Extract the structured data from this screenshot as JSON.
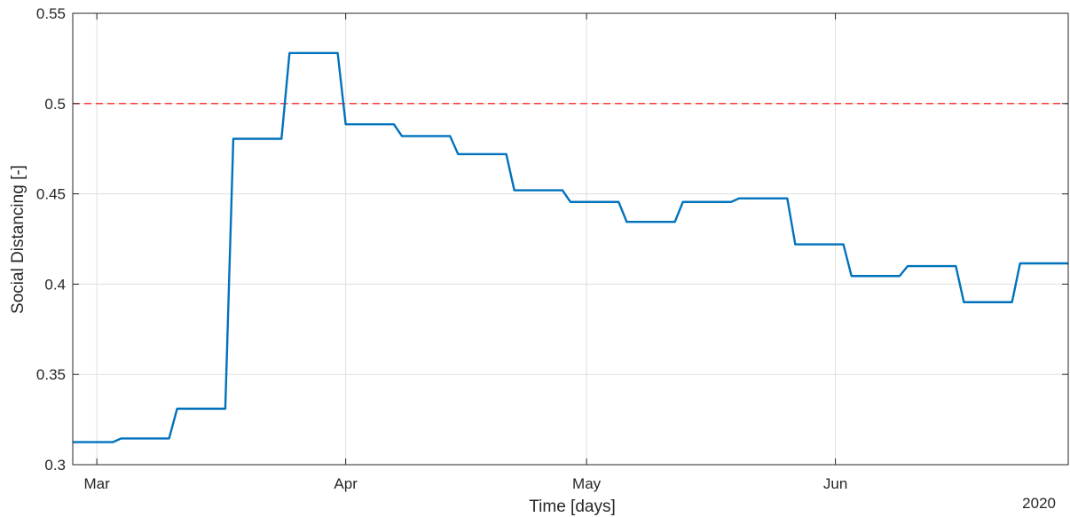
{
  "chart_data": {
    "type": "line",
    "xlabel": "Time [days]",
    "ylabel": "Social Distancing [-]",
    "year_label": "2020",
    "xlim": [
      "2020-02-27",
      "2020-06-30"
    ],
    "ylim": [
      0.3,
      0.55
    ],
    "yticks": [
      0.3,
      0.35,
      0.4,
      0.45,
      0.5,
      0.55
    ],
    "ytick_labels": [
      "0.3",
      "0.35",
      "0.4",
      "0.45",
      "0.5",
      "0.55"
    ],
    "xticks": [
      "2020-03-01",
      "2020-04-01",
      "2020-05-01",
      "2020-06-01"
    ],
    "xtick_labels": [
      "Mar",
      "Apr",
      "May",
      "Jun"
    ],
    "grid": true,
    "threshold": {
      "y": 0.5,
      "color": "#ff0000",
      "style": "dashed"
    },
    "series": [
      {
        "color": "#0072bd",
        "points": [
          [
            "2020-02-27",
            0.3125
          ],
          [
            "2020-03-03",
            0.3125
          ],
          [
            "2020-03-04",
            0.3145
          ],
          [
            "2020-03-10",
            0.3145
          ],
          [
            "2020-03-11",
            0.331
          ],
          [
            "2020-03-17",
            0.331
          ],
          [
            "2020-03-18",
            0.4805
          ],
          [
            "2020-03-24",
            0.4805
          ],
          [
            "2020-03-25",
            0.528
          ],
          [
            "2020-03-31",
            0.528
          ],
          [
            "2020-04-01",
            0.4885
          ],
          [
            "2020-04-07",
            0.4885
          ],
          [
            "2020-04-08",
            0.482
          ],
          [
            "2020-04-14",
            0.482
          ],
          [
            "2020-04-15",
            0.472
          ],
          [
            "2020-04-21",
            0.472
          ],
          [
            "2020-04-22",
            0.452
          ],
          [
            "2020-04-28",
            0.452
          ],
          [
            "2020-04-29",
            0.4455
          ],
          [
            "2020-05-05",
            0.4455
          ],
          [
            "2020-05-06",
            0.4345
          ],
          [
            "2020-05-12",
            0.4345
          ],
          [
            "2020-05-13",
            0.4455
          ],
          [
            "2020-05-19",
            0.4455
          ],
          [
            "2020-05-20",
            0.4475
          ],
          [
            "2020-05-26",
            0.4475
          ],
          [
            "2020-05-27",
            0.422
          ],
          [
            "2020-06-02",
            0.422
          ],
          [
            "2020-06-03",
            0.4045
          ],
          [
            "2020-06-09",
            0.4045
          ],
          [
            "2020-06-10",
            0.41
          ],
          [
            "2020-06-16",
            0.41
          ],
          [
            "2020-06-17",
            0.39
          ],
          [
            "2020-06-23",
            0.39
          ],
          [
            "2020-06-24",
            0.4115
          ],
          [
            "2020-06-30",
            0.4115
          ]
        ]
      }
    ]
  },
  "colors": {
    "series": "#0072bd",
    "threshold": "#ff0000",
    "grid": "#dfdfdf",
    "axis": "#262626"
  }
}
